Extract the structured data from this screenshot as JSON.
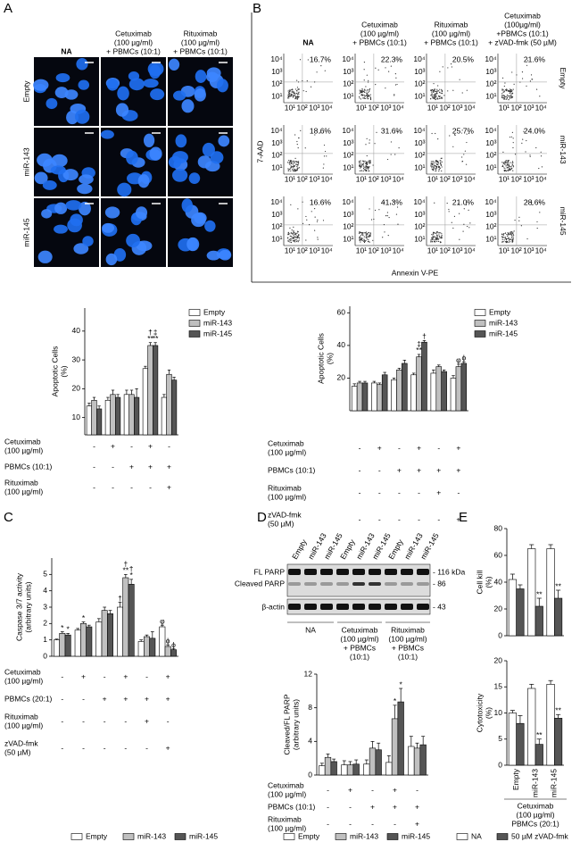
{
  "panel_a": {
    "label": "A",
    "columns": [
      [
        "NA"
      ],
      [
        "Cetuximab",
        "(100 µg/ml)",
        "+ PBMCs (10:1)"
      ],
      [
        "Rituximab",
        "(100 µg/ml)",
        "+ PBMCs (10:1)"
      ]
    ],
    "rows": [
      "Empty",
      "miR-143",
      "miR-145"
    ]
  },
  "panel_b": {
    "label": "B",
    "columns": [
      [
        "NA"
      ],
      [
        "Cetuximab",
        "(100 µg/ml)",
        "+ PBMCs (10:1)"
      ],
      [
        "Rituximab",
        "(100 µg/ml)",
        "+ PBMCs (10:1)"
      ],
      [
        "Cetuximab",
        "(100µg/ml)",
        "+PBMCs (10:1)",
        "+ zVAD-fmk (50 µM)"
      ]
    ],
    "rows": [
      "Empty",
      "miR-143",
      "miR-145"
    ],
    "percentages": [
      [
        "16.7%",
        "22.3%",
        "20.5%",
        "21.6%"
      ],
      [
        "18.6%",
        "31.6%",
        "25.7%",
        "24.0%"
      ],
      [
        "16.6%",
        "41.3%",
        "21.0%",
        "28.6%"
      ]
    ],
    "ticks": [
      "10¹",
      "10²",
      "10³",
      "10⁴"
    ],
    "y_label": "7-AAD",
    "x_label": "Annexin V-PE"
  },
  "panel_c": {
    "label": "C"
  },
  "panel_d": {
    "label": "D",
    "lanes": [
      "Empty",
      "miR-143",
      "miR-145",
      "Empty",
      "miR-143",
      "miR-145",
      "Empty",
      "miR-143",
      "miR-145"
    ],
    "bands": [
      "FL PARP",
      "Cleaved PARP",
      "β-actin"
    ],
    "markers": [
      "- 116 kDa",
      "- 86",
      "- 43"
    ],
    "groups": [
      [
        "NA"
      ],
      [
        "Cetuximab",
        "(100 µg/ml)",
        "+ PBMCs",
        "(10:1)"
      ],
      [
        "Rituximab",
        "(100 µg/ml)",
        "+ PBMCs",
        "(10:1)"
      ]
    ]
  },
  "panel_e": {
    "label": "E"
  },
  "chart_data": [
    {
      "type": "bar",
      "y_label": [
        "Apoptotic Cells",
        "(%)"
      ],
      "ylim": [
        4,
        48
      ],
      "yticks": [
        10,
        20,
        30,
        40
      ],
      "legend": "right",
      "series": [
        {
          "name": "Empty",
          "color": "#ffffff",
          "values": [
            14,
            16,
            18,
            27,
            17
          ],
          "errors": [
            1,
            1,
            1.5,
            0.8,
            1
          ],
          "annotations": [
            null,
            null,
            null,
            null,
            null
          ]
        },
        {
          "name": "miR-143",
          "color": "#c0c0c0",
          "values": [
            16,
            18,
            18,
            35,
            25
          ],
          "errors": [
            1,
            1.5,
            1.5,
            1,
            1.5
          ],
          "annotations": [
            null,
            null,
            null,
            [
              "†",
              "**"
            ],
            null
          ]
        },
        {
          "name": "miR-145",
          "color": "#555555",
          "values": [
            13,
            17,
            17,
            35,
            23
          ],
          "errors": [
            1,
            1,
            3,
            1,
            1
          ],
          "annotations": [
            null,
            null,
            null,
            [
              "‡",
              "**"
            ],
            null
          ]
        }
      ],
      "conditions": [
        {
          "label": [
            "Cetuximab",
            "(100 µg/ml)"
          ],
          "values": [
            "-",
            "+",
            "-",
            "+",
            "-"
          ]
        },
        {
          "label": [
            "PBMCs (10:1)"
          ],
          "values": [
            "-",
            "-",
            "+",
            "+",
            "+"
          ]
        },
        {
          "label": [
            "Rituximab",
            "(100 µg/ml)"
          ],
          "values": [
            "-",
            "-",
            "-",
            "-",
            "+"
          ]
        }
      ]
    },
    {
      "type": "bar",
      "y_label": [
        "Apoptotic Cells",
        "(%)"
      ],
      "ylim": [
        0,
        64
      ],
      "yticks": [
        20,
        40,
        60
      ],
      "legend": "right",
      "series": [
        {
          "name": "Empty",
          "color": "#ffffff",
          "values": [
            15,
            17,
            19,
            22,
            23,
            20
          ],
          "errors": [
            1.5,
            1,
            1,
            1,
            2,
            1.5
          ],
          "annotations": [
            null,
            null,
            null,
            null,
            null,
            null
          ]
        },
        {
          "name": "miR-143",
          "color": "#c0c0c0",
          "values": [
            17,
            16,
            25,
            33,
            27,
            27
          ],
          "errors": [
            1,
            1,
            1,
            1.5,
            1,
            1.5
          ],
          "annotations": [
            null,
            null,
            null,
            [
              "‡",
              "**"
            ],
            null,
            [
              "φ"
            ]
          ]
        },
        {
          "name": "miR-145",
          "color": "#555555",
          "values": [
            17,
            22,
            29,
            42,
            24,
            29
          ],
          "errors": [
            1,
            1.5,
            2,
            1,
            1,
            1
          ],
          "annotations": [
            null,
            null,
            null,
            [
              "†"
            ],
            null,
            [
              "ϕ"
            ]
          ]
        }
      ],
      "conditions": [
        {
          "label": [
            "Cetuximab",
            "(100 µg/ml)"
          ],
          "values": [
            "-",
            "+",
            "-",
            "+",
            "-",
            "+"
          ]
        },
        {
          "label": [
            "PBMCs (10:1)"
          ],
          "values": [
            "-",
            "-",
            "+",
            "+",
            "+",
            "+"
          ]
        },
        {
          "label": [
            "Rituximab",
            "(100 µg/ml)"
          ],
          "values": [
            "-",
            "-",
            "-",
            "-",
            "+",
            "-"
          ]
        },
        {
          "label": [
            "zVAD-fmk",
            "(50 µM)"
          ],
          "values": [
            "-",
            "-",
            "-",
            "-",
            "-",
            "+"
          ]
        }
      ]
    },
    {
      "type": "bar",
      "y_label": [
        "Caspase 3/7 activity",
        "(arbitrary units)"
      ],
      "ylim": [
        0,
        6
      ],
      "yticks": [
        0,
        1,
        2,
        3,
        4,
        5
      ],
      "legend": "bottom",
      "series": [
        {
          "name": "Empty",
          "color": "#ffffff",
          "values": [
            1.0,
            1.6,
            2.1,
            3.0,
            0.9,
            1.8
          ],
          "errors": [
            0.05,
            0.1,
            0.2,
            0.3,
            0.1,
            0.1
          ],
          "annotations": [
            null,
            null,
            null,
            [
              "†"
            ],
            null,
            [
              "φ"
            ]
          ]
        },
        {
          "name": "miR-143",
          "color": "#c0c0c0",
          "values": [
            1.4,
            2.0,
            2.8,
            4.8,
            1.2,
            0.6
          ],
          "errors": [
            0.1,
            0.1,
            0.2,
            0.2,
            0.1,
            0.1
          ],
          "annotations": [
            [
              "*"
            ],
            [
              "*"
            ],
            null,
            [
              "†",
              "**"
            ],
            null,
            [
              "ϕ"
            ]
          ]
        },
        {
          "name": "miR-145",
          "color": "#555555",
          "values": [
            1.3,
            1.8,
            2.6,
            4.4,
            1.1,
            0.4
          ],
          "errors": [
            0.1,
            0.1,
            0.2,
            0.3,
            0.4,
            0.05
          ],
          "annotations": [
            [
              "*"
            ],
            null,
            null,
            [
              "†",
              "*"
            ],
            null,
            [
              "ϕ"
            ]
          ]
        }
      ],
      "conditions": [
        {
          "label": [
            "Cetuximab",
            "(100 µg/ml)"
          ],
          "values": [
            "-",
            "+",
            "-",
            "+",
            "-",
            "+"
          ]
        },
        {
          "label": [
            "PBMCs (20:1)"
          ],
          "values": [
            "-",
            "-",
            "+",
            "+",
            "+",
            "+"
          ]
        },
        {
          "label": [
            "Rituximab",
            "(100 µg/ml)"
          ],
          "values": [
            "-",
            "-",
            "-",
            "-",
            "+",
            "-"
          ]
        },
        {
          "label": [
            "zVAD-fmk",
            "(50 µM)"
          ],
          "values": [
            "-",
            "-",
            "-",
            "-",
            "-",
            "+"
          ]
        }
      ]
    },
    {
      "type": "bar",
      "y_label": [
        "Cleaved/FL PARP",
        "(arbitrary units)"
      ],
      "ylim": [
        0,
        12
      ],
      "yticks": [
        0,
        4,
        8,
        12
      ],
      "legend": "bottom",
      "series": [
        {
          "name": "Empty",
          "color": "#ffffff",
          "values": [
            1.1,
            1.2,
            1.3,
            1.5,
            3.4
          ],
          "errors": [
            0.3,
            0.5,
            0.5,
            0.8,
            1.2
          ],
          "annotations": [
            null,
            null,
            null,
            null,
            null
          ]
        },
        {
          "name": "miR-143",
          "color": "#c0c0c0",
          "values": [
            2.1,
            1.2,
            3.2,
            6.7,
            3.2
          ],
          "errors": [
            0.4,
            0.4,
            0.8,
            1.6,
            0.6
          ],
          "annotations": [
            null,
            null,
            null,
            [
              "*"
            ],
            null
          ]
        },
        {
          "name": "miR-145",
          "color": "#555555",
          "values": [
            1.6,
            1.3,
            3.0,
            8.7,
            3.6
          ],
          "errors": [
            0.3,
            0.5,
            0.8,
            1.6,
            1.0
          ],
          "annotations": [
            null,
            null,
            null,
            [
              "*"
            ],
            null
          ]
        }
      ],
      "conditions": [
        {
          "label": [
            "Cetuximab",
            "(100 µg/ml)"
          ],
          "values": [
            "-",
            "+",
            "-",
            "+",
            "-"
          ]
        },
        {
          "label": [
            "PBMCs (10:1)"
          ],
          "values": [
            "-",
            "-",
            "+",
            "+",
            "+"
          ]
        },
        {
          "label": [
            "Rituximab",
            "(100 µg/ml)"
          ],
          "values": [
            "-",
            "-",
            "-",
            "-",
            "+"
          ]
        }
      ]
    },
    {
      "type": "bar",
      "y_label": [
        "Cell kill",
        "(%)"
      ],
      "ylim": [
        0,
        80
      ],
      "yticks": [
        0,
        20,
        40,
        60,
        80
      ],
      "legend": "bottom",
      "series": [
        {
          "name": "NA",
          "color": "#ffffff",
          "values": [
            42,
            65,
            65
          ],
          "errors": [
            4,
            3,
            3
          ],
          "annotations": [
            null,
            null,
            null
          ]
        },
        {
          "name": "50 µM zVAD-fmk",
          "color": "#555555",
          "values": [
            35,
            22,
            28
          ],
          "errors": [
            3,
            6,
            6
          ],
          "annotations": [
            null,
            [
              "**"
            ],
            [
              "**"
            ]
          ]
        }
      ]
    },
    {
      "type": "bar",
      "y_label": [
        "Cytotoxicity",
        "(%)"
      ],
      "ylim": [
        0,
        20
      ],
      "yticks": [
        0,
        5,
        10,
        15,
        20
      ],
      "categories": [
        "Empty",
        "miR-143",
        "miR-145"
      ],
      "x_label": [
        "Cetuximab",
        "(100 µg/ml)",
        "PBMCs (20:1)"
      ],
      "series": [
        {
          "color": "#ffffff",
          "values": [
            10,
            14.7,
            15.5
          ],
          "errors": [
            0.5,
            0.8,
            0.7
          ],
          "annotations": [
            null,
            null,
            null
          ]
        },
        {
          "color": "#555555",
          "values": [
            8,
            4,
            9
          ],
          "errors": [
            1.5,
            1,
            0.7
          ],
          "annotations": [
            null,
            [
              "**"
            ],
            [
              "**"
            ]
          ]
        }
      ]
    }
  ]
}
